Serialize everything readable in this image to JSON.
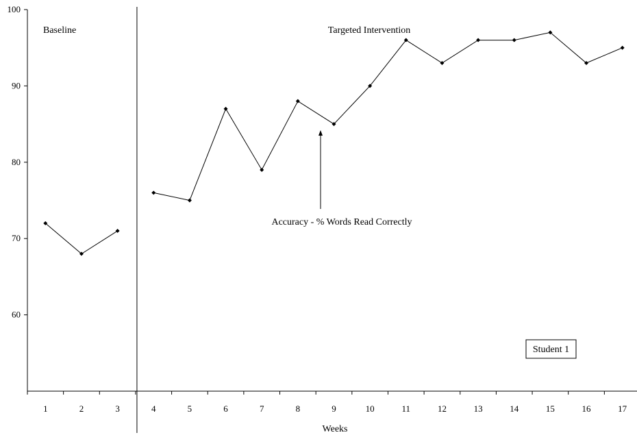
{
  "chart_data": {
    "type": "line",
    "xlabel": "Weeks",
    "ylabel": "",
    "ylim": [
      50,
      100
    ],
    "y_ticks": [
      60,
      70,
      80,
      90,
      100
    ],
    "categories": [
      "1",
      "2",
      "3",
      "4",
      "5",
      "6",
      "7",
      "8",
      "9",
      "10",
      "11",
      "12",
      "13",
      "14",
      "15",
      "16",
      "17"
    ],
    "phases": [
      {
        "label": "Baseline",
        "weeks": [
          1,
          3
        ]
      },
      {
        "label": "Targeted Intervention",
        "weeks": [
          4,
          17
        ]
      }
    ],
    "series": [
      {
        "name": "Accuracy - %  Words Read Correctly",
        "segments": [
          {
            "x": [
              1,
              2,
              3
            ],
            "y": [
              72,
              68,
              71
            ]
          },
          {
            "x": [
              4,
              5,
              6,
              7,
              8,
              9,
              10,
              11,
              12,
              13,
              14,
              15,
              16,
              17
            ],
            "y": [
              76,
              75,
              87,
              79,
              88,
              85,
              90,
              96,
              93,
              96,
              96,
              97,
              93,
              95
            ]
          }
        ]
      }
    ],
    "annotations": {
      "series_callout": "Accuracy - %  Words Read Correctly",
      "student_label": "Student 1"
    },
    "grid": false,
    "legend": "none"
  }
}
